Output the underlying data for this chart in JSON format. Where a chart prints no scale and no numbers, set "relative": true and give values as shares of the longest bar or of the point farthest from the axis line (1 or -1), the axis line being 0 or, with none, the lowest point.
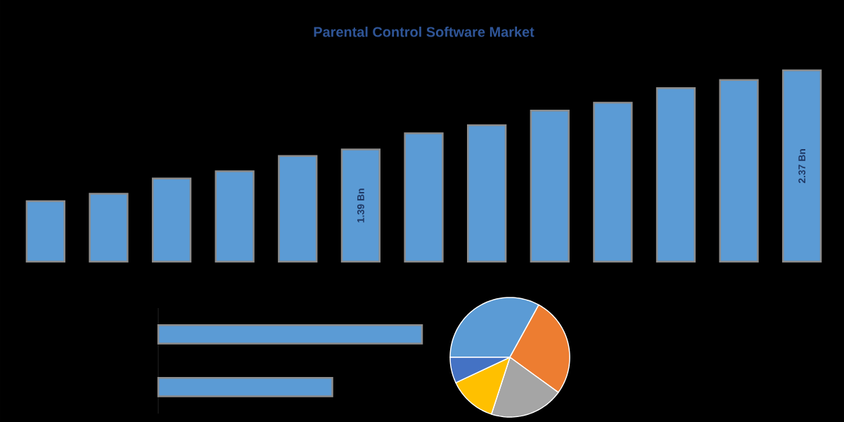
{
  "chart_data": [
    {
      "type": "bar",
      "title": "Parental Control Software Market",
      "color": "#5b9bd5",
      "categories": [
        null,
        null,
        null,
        null,
        null,
        null,
        null,
        null,
        null,
        null,
        null,
        null,
        null
      ],
      "values": [
        0.75,
        0.84,
        1.03,
        1.12,
        1.31,
        1.39,
        1.59,
        1.69,
        1.87,
        1.97,
        2.15,
        2.25,
        2.37
      ],
      "value_labels": [
        null,
        null,
        null,
        null,
        null,
        "1.39 Bn",
        null,
        null,
        null,
        null,
        null,
        null,
        "2.37 Bn"
      ]
    },
    {
      "type": "bar",
      "orientation": "horizontal",
      "relative": true,
      "color": "#5b9bd5",
      "categories": [
        null,
        null
      ],
      "values": [
        1,
        0.66
      ]
    },
    {
      "type": "pie",
      "categories": [
        null,
        null,
        null,
        null,
        null
      ],
      "values": [
        33,
        27,
        20,
        13,
        7
      ],
      "colors": [
        "#5b9bd5",
        "#ed7d31",
        "#a5a5a5",
        "#ffc000",
        "#4472c4"
      ]
    }
  ]
}
